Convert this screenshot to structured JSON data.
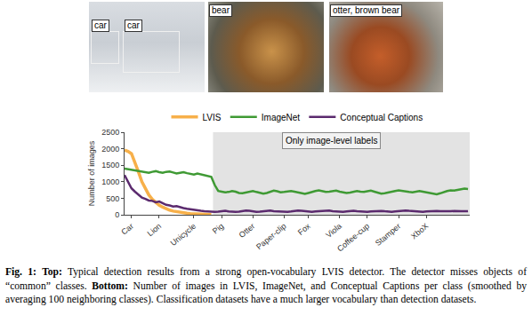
{
  "chart_data": {
    "type": "line",
    "categories": [
      null,
      null,
      "Car",
      null,
      null,
      null,
      null,
      null,
      null,
      null,
      "Lion",
      null,
      null,
      null,
      null,
      null,
      null,
      null,
      null,
      null,
      "Unicycle",
      null,
      null,
      null,
      null,
      null,
      null,
      null,
      "Pig",
      null,
      null,
      null,
      null,
      null,
      null,
      null,
      null,
      "Otter",
      null,
      null,
      null,
      null,
      null,
      null,
      null,
      null,
      "Paper-clip",
      null,
      null,
      null,
      null,
      null,
      null,
      "Fox",
      null,
      null,
      null,
      null,
      null,
      null,
      null,
      null,
      "Viola",
      null,
      null,
      null,
      null,
      null,
      null,
      null,
      "Coffee-cup",
      null,
      null,
      null,
      null,
      null,
      null,
      null,
      null,
      "Stamper",
      null,
      null,
      null,
      null,
      null,
      null,
      null,
      "XboX",
      null,
      null,
      null,
      null,
      null,
      null,
      null,
      null,
      null,
      null,
      null,
      null
    ],
    "series": [
      {
        "name": "LVIS",
        "color": "#f7b04a",
        "values": [
          1960,
          1920,
          1850,
          1600,
          1300,
          1000,
          780,
          600,
          470,
          370,
          290,
          230,
          180,
          140,
          110,
          90,
          70,
          55,
          45,
          35,
          28,
          22,
          17,
          13,
          10,
          8,
          null,
          null,
          null,
          null,
          null,
          null,
          null,
          null,
          null,
          null,
          null,
          null,
          null,
          null,
          null,
          null,
          null,
          null,
          null,
          null,
          null,
          null,
          null,
          null,
          null,
          null,
          null,
          null,
          null,
          null,
          null,
          null,
          null,
          null,
          null,
          null,
          null,
          null,
          null,
          null,
          null,
          null,
          null,
          null,
          null,
          null,
          null,
          null,
          null,
          null,
          null,
          null,
          null,
          null,
          null,
          null,
          null,
          null,
          null,
          null,
          null,
          null,
          null,
          null,
          null,
          null,
          null,
          null,
          null,
          null,
          null,
          null,
          null,
          null
        ]
      },
      {
        "name": "ImageNet",
        "color": "#3f9a34",
        "values": [
          1400,
          1380,
          1360,
          1330,
          1310,
          1300,
          1290,
          1270,
          1300,
          1320,
          1290,
          1270,
          1300,
          1310,
          1280,
          1250,
          1270,
          1290,
          1260,
          1240,
          1220,
          1250,
          1230,
          1200,
          1180,
          1150,
          900,
          720,
          700,
          680,
          690,
          720,
          700,
          660,
          650,
          680,
          700,
          720,
          690,
          670,
          640,
          660,
          700,
          730,
          710,
          680,
          690,
          700,
          720,
          700,
          680,
          650,
          630,
          660,
          700,
          720,
          740,
          710,
          690,
          700,
          720,
          730,
          700,
          680,
          660,
          670,
          700,
          720,
          700,
          690,
          710,
          730,
          700,
          660,
          640,
          650,
          680,
          700,
          720,
          740,
          720,
          700,
          690,
          680,
          700,
          720,
          700,
          680,
          650,
          630,
          620,
          650,
          690,
          720,
          740,
          730,
          750,
          770,
          790,
          780
        ]
      },
      {
        "name": "Conceptual Captions",
        "color": "#5b2a6e",
        "values": [
          1200,
          1000,
          800,
          700,
          600,
          520,
          480,
          430,
          420,
          380,
          400,
          340,
          300,
          280,
          250,
          260,
          220,
          200,
          180,
          160,
          150,
          130,
          120,
          110,
          100,
          100,
          90,
          95,
          110,
          120,
          100,
          90,
          85,
          95,
          110,
          130,
          120,
          100,
          90,
          95,
          105,
          120,
          130,
          110,
          100,
          90,
          85,
          90,
          100,
          115,
          125,
          120,
          105,
          95,
          90,
          100,
          110,
          120,
          130,
          125,
          110,
          100,
          95,
          90,
          100,
          115,
          120,
          110,
          100,
          95,
          90,
          100,
          110,
          120,
          115,
          105,
          95,
          90,
          100,
          110,
          125,
          130,
          120,
          110,
          100,
          95,
          90,
          100,
          110,
          120,
          115,
          105,
          100,
          95,
          105,
          115,
          120,
          110,
          105,
          110
        ]
      }
    ],
    "ylabel": "Number of images",
    "ylim": [
      0,
      2500
    ],
    "yticks": [
      0,
      500,
      1000,
      1500,
      2000,
      2500
    ],
    "grid": false,
    "legend": "top",
    "annotations": [
      {
        "text": "Only image-level labels",
        "from": 26
      }
    ]
  },
  "images": [
    {
      "labels": [
        "car",
        "car"
      ]
    },
    {
      "labels": [
        "bear"
      ]
    },
    {
      "labels": [
        "otter, brown bear"
      ]
    }
  ],
  "caption": [
    {
      "text": "Fig. 1:",
      "bold": true
    },
    {
      "text": " "
    },
    {
      "text": "Top:",
      "bold": true
    },
    {
      "text": " Typical detection results from a strong open-vocabulary LVIS detector. The detector misses objects of “common” classes. "
    },
    {
      "text": "Bottom:",
      "bold": true
    },
    {
      "text": " Number of images in LVIS, ImageNet, and Conceptual Captions per class (smoothed by averaging 100 neighboring classes). Classification datasets have a much larger vocabulary than detection datasets."
    }
  ]
}
